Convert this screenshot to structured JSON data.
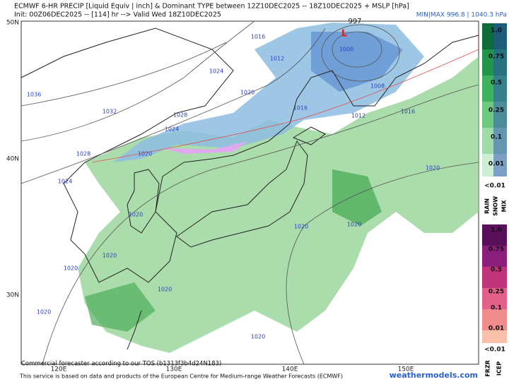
{
  "header": {
    "title": "ECMWF 6-HR PRECIP [Liquid Equiv | inch] & Dominant TYPE between 12Z10DEC2025 -- 18Z10DEC2025 + MSLP [hPa]",
    "subtitle": "Init: 00Z06DEC2025 -- [114] hr --> Valid Wed 18Z10DEC2025",
    "minmax": "MIN|MAX 996.8 | 1040.3 hPa"
  },
  "map": {
    "lat_labels": [
      "50N",
      "40N",
      "30N"
    ],
    "lon_labels": [
      "120E",
      "130E",
      "140E",
      "150E"
    ],
    "low_label": "L",
    "low_value": "997",
    "isobars": [
      "1016",
      "1012",
      "1024",
      "1036",
      "1032",
      "1028",
      "1024",
      "1020",
      "1020",
      "1028",
      "1024",
      "1020",
      "1020",
      "1020",
      "1020",
      "1020",
      "1020",
      "1020",
      "1020",
      "1020",
      "1016",
      "1016",
      "1012",
      "1008",
      "1000"
    ]
  },
  "legend": {
    "rain_ticks": [
      "1.0",
      "0.75",
      "0.5",
      "0.25",
      "0.1",
      "0.01"
    ],
    "rain_low": "<0.01",
    "rain_types": [
      "RAIN",
      "SNOW",
      "MIX"
    ],
    "frzr_ticks": [
      "1.0",
      "0.75",
      "0.5",
      "0.25",
      "0.1",
      "0.01"
    ],
    "frzr_low": "<0.01",
    "frzr_types": [
      "FRZR",
      "ICEP"
    ]
  },
  "footer": {
    "tos": "Commercial forecaster according to our TOS (b1313f3b4d24N183)",
    "credit": "This service is based on data and products of the European Centre for Medium-range Weather Forecasts (ECMWF)",
    "site": "weathermodels.com"
  }
}
